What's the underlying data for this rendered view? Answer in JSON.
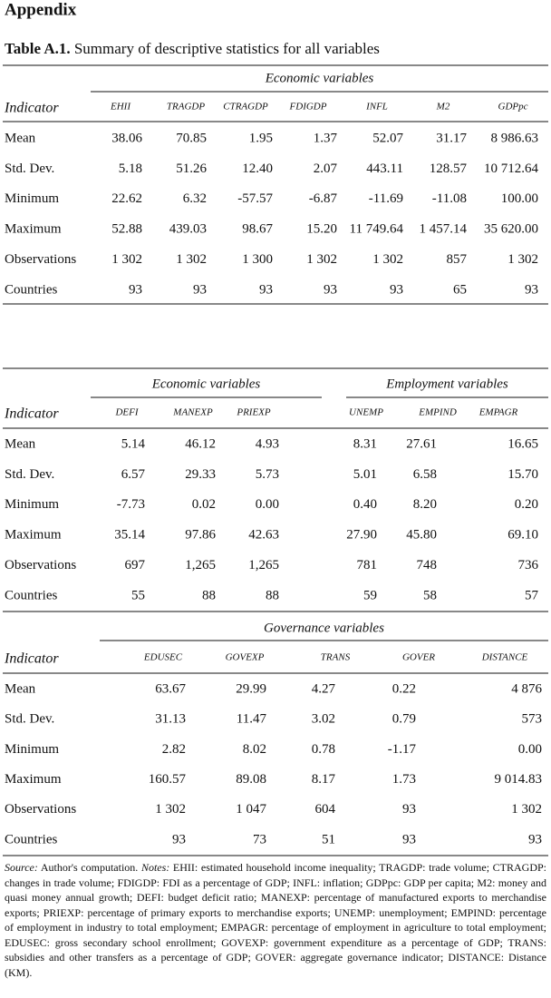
{
  "heading": "Appendix",
  "caption": {
    "label": "Table A.1.",
    "text": "Summary of descriptive statistics for all variables"
  },
  "tables": [
    {
      "groups": [
        "Economic variables"
      ],
      "row_header": "Indicator",
      "columns": [
        "EHII",
        "TRAGDP",
        "CTRAGDP",
        "FDIGDP",
        "INFL",
        "M2",
        "GDPpc"
      ],
      "rows": [
        {
          "label": "Mean",
          "cells": [
            "38.06",
            "70.85",
            "1.95",
            "1.37",
            "52.07",
            "31.17",
            "8 986.63"
          ]
        },
        {
          "label": "Std. Dev.",
          "cells": [
            "5.18",
            "51.26",
            "12.40",
            "2.07",
            "443.11",
            "128.57",
            "10 712.64"
          ]
        },
        {
          "label": "Minimum",
          "cells": [
            "22.62",
            "6.32",
            "-57.57",
            "-6.87",
            "-11.69",
            "-11.08",
            "100.00"
          ]
        },
        {
          "label": "Maximum",
          "cells": [
            "52.88",
            "439.03",
            "98.67",
            "15.20",
            "11 749.64",
            "1 457.14",
            "35 620.00"
          ]
        },
        {
          "label": "Observations",
          "cells": [
            "1 302",
            "1 302",
            "1 300",
            "1 302",
            "1 302",
            "857",
            "1 302"
          ]
        },
        {
          "label": "Countries",
          "cells": [
            "93",
            "93",
            "93",
            "93",
            "93",
            "65",
            "93"
          ]
        }
      ]
    },
    {
      "groups": [
        "Economic variables",
        "Employment variables"
      ],
      "row_header": "Indicator",
      "columns": [
        "DEFI",
        "MANEXP",
        "PRIEXP",
        "UNEMP",
        "EMPIND",
        "EMPAGR"
      ],
      "rows": [
        {
          "label": "Mean",
          "cells": [
            "5.14",
            "46.12",
            "4.93",
            "8.31",
            "27.61",
            "16.65"
          ]
        },
        {
          "label": "Std. Dev.",
          "cells": [
            "6.57",
            "29.33",
            "5.73",
            "5.01",
            "6.58",
            "15.70"
          ]
        },
        {
          "label": "Minimum",
          "cells": [
            "-7.73",
            "0.02",
            "0.00",
            "0.40",
            "8.20",
            "0.20"
          ]
        },
        {
          "label": "Maximum",
          "cells": [
            "35.14",
            "97.86",
            "42.63",
            "27.90",
            "45.80",
            "69.10"
          ]
        },
        {
          "label": "Observations",
          "cells": [
            "697",
            "1,265",
            "1,265",
            "781",
            "748",
            "736"
          ]
        },
        {
          "label": "Countries",
          "cells": [
            "55",
            "88",
            "88",
            "59",
            "58",
            "57"
          ]
        }
      ]
    },
    {
      "groups": [
        "Governance variables"
      ],
      "row_header": "Indicator",
      "columns": [
        "EDUSEC",
        "GOVEXP",
        "TRANS",
        "GOVER",
        "DISTANCE"
      ],
      "rows": [
        {
          "label": "Mean",
          "cells": [
            "63.67",
            "29.99",
            "4.27",
            "0.22",
            "4 876"
          ]
        },
        {
          "label": "Std. Dev.",
          "cells": [
            "31.13",
            "11.47",
            "3.02",
            "0.79",
            "573"
          ]
        },
        {
          "label": "Minimum",
          "cells": [
            "2.82",
            "8.02",
            "0.78",
            "-1.17",
            "0.00"
          ]
        },
        {
          "label": "Maximum",
          "cells": [
            "160.57",
            "89.08",
            "8.17",
            "1.73",
            "9 014.83"
          ]
        },
        {
          "label": "Observations",
          "cells": [
            "1 302",
            "1 047",
            "604",
            "93",
            "1 302"
          ]
        },
        {
          "label": "Countries",
          "cells": [
            "93",
            "73",
            "51",
            "93",
            "93"
          ]
        }
      ]
    }
  ],
  "notes": {
    "source_label": "Source:",
    "source_text": "Author's computation.",
    "notes_label": "Notes:",
    "notes_text": "EHII: estimated household income inequality; TRAGDP: trade volume; CTRAGDP: changes in trade volume; FDIGDP: FDI as a percentage of GDP; INFL: inflation; GDPpc: GDP per capita; M2: money and quasi money annual growth; DEFI: budget deficit ratio; MANEXP: percentage of manufactured exports to merchandise exports; PRIEXP: percentage of primary exports to merchandise exports; UNEMP: unemployment; EMPIND: percentage of employment in industry to total employment; EMPAGR: percentage of employment in agriculture to total employment; EDUSEC: gross secondary school enrollment; GOVEXP: government expenditure as a percentage of GDP; TRANS: subsidies and other transfers as a percentage of GDP; GOVER: aggregate governance indicator; DISTANCE: Distance (KM)."
  }
}
